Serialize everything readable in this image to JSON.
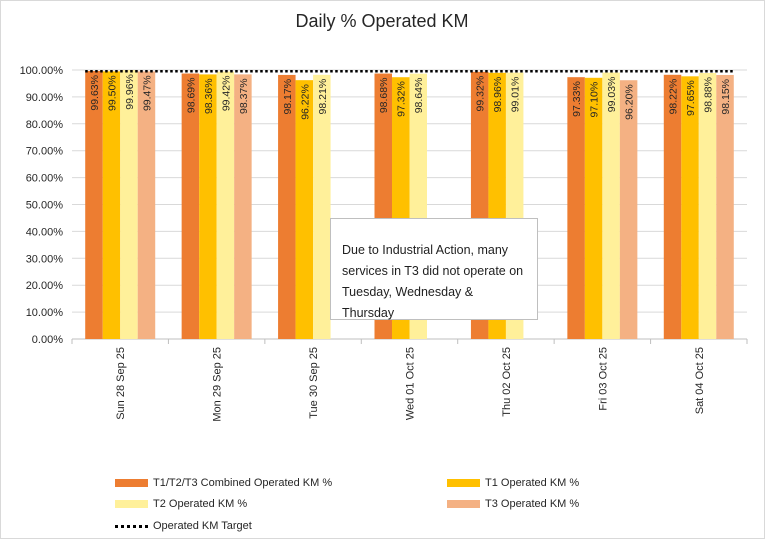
{
  "chart_data": {
    "type": "bar",
    "title": "Daily % Operated KM",
    "xlabel": "",
    "ylabel": "",
    "ylim": [
      0,
      100
    ],
    "ytick_step": 10,
    "ytick_labels": [
      "0.00%",
      "10.00%",
      "20.00%",
      "30.00%",
      "40.00%",
      "50.00%",
      "60.00%",
      "70.00%",
      "80.00%",
      "90.00%",
      "100.00%"
    ],
    "categories": [
      "Sun 28 Sep 25",
      "Mon 29 Sep 25",
      "Tue 30 Sep 25",
      "Wed 01 Oct 25",
      "Thu 02 Oct 25",
      "Fri 03 Oct 25",
      "Sat 04 Oct 25"
    ],
    "series": [
      {
        "name": "T1/T2/T3 Combined Operated KM %",
        "color": "#ed7d31",
        "values": [
          99.63,
          98.69,
          98.17,
          98.68,
          99.32,
          97.33,
          98.22
        ],
        "labels": [
          "99.63%",
          "98.69%",
          "98.17%",
          "98.68%",
          "99.32%",
          "97.33%",
          "98.22%"
        ]
      },
      {
        "name": "T1 Operated KM %",
        "color": "#ffc000",
        "values": [
          99.5,
          98.36,
          96.22,
          97.32,
          98.96,
          97.1,
          97.65
        ],
        "labels": [
          "99.50%",
          "98.36%",
          "96.22%",
          "97.32%",
          "98.96%",
          "97.10%",
          "97.65%"
        ]
      },
      {
        "name": "T2 Operated KM %",
        "color": "#fff09a",
        "values": [
          99.96,
          99.42,
          98.21,
          98.64,
          99.01,
          99.03,
          98.88
        ],
        "labels": [
          "99.96%",
          "99.42%",
          "98.21%",
          "98.64%",
          "99.01%",
          "99.03%",
          "98.88%"
        ]
      },
      {
        "name": "T3 Operated KM %",
        "color": "#f4b183",
        "values": [
          99.47,
          98.37,
          null,
          null,
          null,
          96.2,
          98.15
        ],
        "labels": [
          "99.47%",
          "98.37%",
          null,
          null,
          null,
          "96.20%",
          "98.15%"
        ]
      }
    ],
    "target": {
      "name": "Operated KM Target",
      "value": 99.0,
      "color": "#000000"
    },
    "annotation": "Due to Industrial Action, many services in T3 did not operate on Tuesday, Wednesday & Thursday",
    "legend_position": "bottom"
  }
}
